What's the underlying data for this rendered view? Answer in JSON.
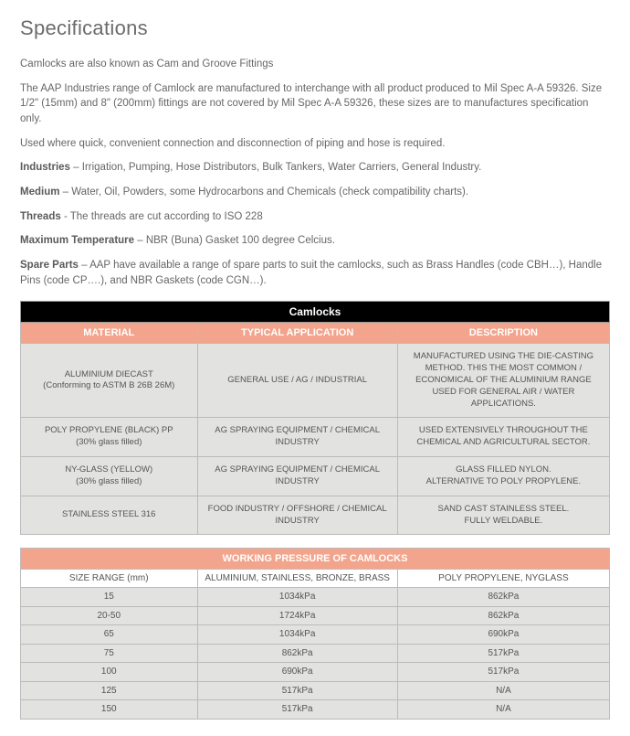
{
  "title": "Specifications",
  "paragraphs": {
    "p1": "Camlocks are also known as Cam and Groove Fittings",
    "p2": "The AAP Industries range of Camlock are manufactured to interchange with all product produced to Mil Spec A-A 59326. Size 1/2\" (15mm) and 8\" (200mm) fittings are not covered by Mil Spec A-A 59326, these sizes are to manufactures specification only.",
    "p3": "Used where quick, convenient connection and disconnection of piping and hose is required.",
    "industries_label": "Industries",
    "industries_text": " – Irrigation, Pumping, Hose Distributors, Bulk Tankers, Water Carriers, General Industry.",
    "medium_label": "Medium",
    "medium_text": " – Water, Oil, Powders, some Hydrocarbons and Chemicals (check compatibility charts).",
    "threads_label": "Threads",
    "threads_text": " - The threads are cut according to ISO 228",
    "maxtemp_label": "Maximum Temperature",
    "maxtemp_text": " – NBR (Buna) Gasket 100 degree Celcius.",
    "spare_label": "Spare Parts",
    "spare_text": " – AAP have available a range of spare parts to suit the camlocks, such as Brass Handles (code CBH…), Handle Pins (code CP….), and NBR Gaskets (code CGN…)."
  },
  "table1": {
    "title": "Camlocks",
    "headers": {
      "c1": "MATERIAL",
      "c2": "TYPICAL APPLICATION",
      "c3": "DESCRIPTION"
    },
    "rows": [
      {
        "c1": "ALUMINIUM DIECAST\n(Conforming to ASTM B 26B 26M)",
        "c2": "GENERAL USE / AG / INDUSTRIAL",
        "c3": "MANUFACTURED USING THE DIE-CASTING METHOD. THIS THE MOST COMMON / ECONOMICAL OF THE ALUMINIUM RANGE USED FOR GENERAL AIR / WATER APPLICATIONS."
      },
      {
        "c1": "POLY PROPYLENE (BLACK) PP\n(30% glass filled)",
        "c2": "AG SPRAYING EQUIPMENT / CHEMICAL INDUSTRY",
        "c3": "USED EXTENSIVELY THROUGHOUT THE CHEMICAL AND AGRICULTURAL SECTOR."
      },
      {
        "c1": "NY-GLASS (YELLOW)\n(30% glass filled)",
        "c2": "AG SPRAYING EQUIPMENT / CHEMICAL INDUSTRY",
        "c3": "GLASS FILLED NYLON.\nALTERNATIVE TO POLY PROPYLENE."
      },
      {
        "c1": "STAINLESS STEEL 316",
        "c2": "FOOD INDUSTRY / OFFSHORE / CHEMICAL INDUSTRY",
        "c3": "SAND CAST STAINLESS STEEL.\nFULLY WELDABLE."
      }
    ]
  },
  "table2": {
    "title": "WORKING PRESSURE OF CAMLOCKS",
    "headers": {
      "c1": "SIZE RANGE (mm)",
      "c2": "ALUMINIUM, STAINLESS, BRONZE, BRASS",
      "c3": "POLY PROPYLENE,  NYGLASS"
    },
    "rows": [
      {
        "c1": "15",
        "c2": "1034kPa",
        "c3": "862kPa"
      },
      {
        "c1": "20-50",
        "c2": "1724kPa",
        "c3": "862kPa"
      },
      {
        "c1": "65",
        "c2": "1034kPa",
        "c3": "690kPa"
      },
      {
        "c1": "75",
        "c2": "862kPa",
        "c3": "517kPa"
      },
      {
        "c1": "100",
        "c2": "690kPa",
        "c3": "517kPa"
      },
      {
        "c1": "125",
        "c2": "517kPa",
        "c3": "N/A"
      },
      {
        "c1": "150",
        "c2": "517kPa",
        "c3": "N/A"
      }
    ]
  },
  "colors": {
    "header_salmon": "#f2a48c",
    "row_grey": "#e2e2e0",
    "title_black": "#000000",
    "text_grey": "#666666"
  }
}
